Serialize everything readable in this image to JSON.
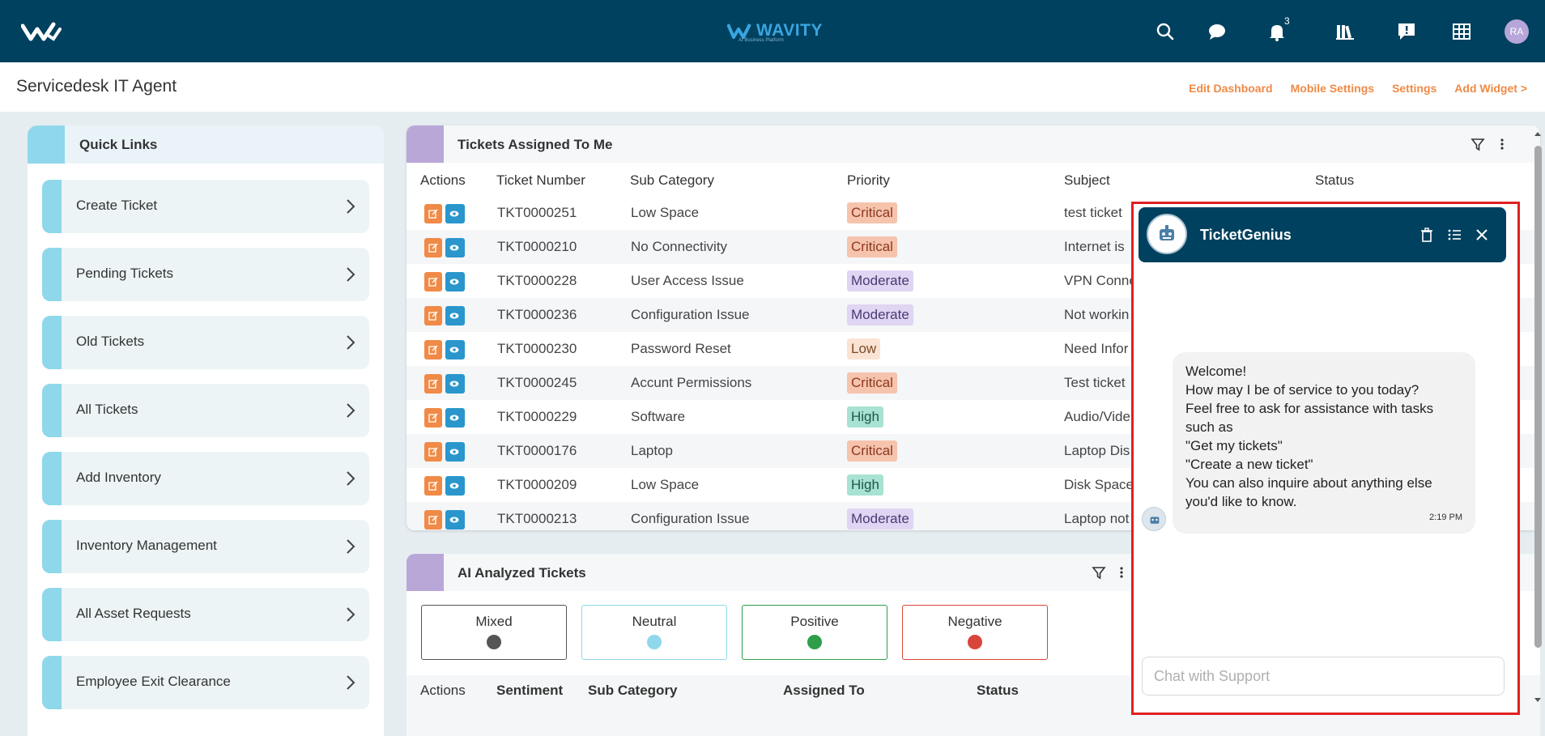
{
  "header": {
    "brand_name": "WAVITY",
    "brand_tagline": "AI Business Platform",
    "notification_count": "3",
    "avatar_initials": "RA",
    "icons": [
      "search-icon",
      "chat-icon",
      "bell-icon",
      "library-icon",
      "feedback-icon",
      "apps-grid-icon"
    ]
  },
  "subheader": {
    "title": "Servicedesk IT Agent",
    "links": [
      "Edit Dashboard",
      "Mobile Settings",
      "Settings",
      "Add Widget >"
    ]
  },
  "quick_links": {
    "title": "Quick Links",
    "items": [
      "Create Ticket",
      "Pending Tickets",
      "Old Tickets",
      "All Tickets",
      "Add Inventory",
      "Inventory Management",
      "All Asset Requests",
      "Employee Exit Clearance"
    ]
  },
  "tickets_panel": {
    "title": "Tickets Assigned To Me",
    "columns": [
      "Actions",
      "Ticket Number",
      "Sub Category",
      "Priority",
      "Subject",
      "Status"
    ],
    "rows": [
      {
        "ticket": "TKT0000251",
        "sub_category": "Low Space",
        "priority": "Critical",
        "subject": "test ticket"
      },
      {
        "ticket": "TKT0000210",
        "sub_category": "No Connectivity",
        "priority": "Critical",
        "subject": "Internet is"
      },
      {
        "ticket": "TKT0000228",
        "sub_category": "User Access Issue",
        "priority": "Moderate",
        "subject": "VPN Conne"
      },
      {
        "ticket": "TKT0000236",
        "sub_category": "Configuration Issue",
        "priority": "Moderate",
        "subject": "Not workin"
      },
      {
        "ticket": "TKT0000230",
        "sub_category": "Password Reset",
        "priority": "Low",
        "subject": "Need Infor"
      },
      {
        "ticket": "TKT0000245",
        "sub_category": "Accunt Permissions",
        "priority": "Critical",
        "subject": "Test ticket"
      },
      {
        "ticket": "TKT0000229",
        "sub_category": "Software",
        "priority": "High",
        "subject": "Audio/Vide"
      },
      {
        "ticket": "TKT0000176",
        "sub_category": "Laptop",
        "priority": "Critical",
        "subject": "Laptop Dis"
      },
      {
        "ticket": "TKT0000209",
        "sub_category": "Low Space",
        "priority": "High",
        "subject": "Disk Space"
      },
      {
        "ticket": "TKT0000213",
        "sub_category": "Configuration Issue",
        "priority": "Moderate",
        "subject": "Laptop not"
      }
    ]
  },
  "ai_panel": {
    "title": "AI Analyzed Tickets",
    "sentiments": [
      {
        "label": "Mixed",
        "color": "#555555"
      },
      {
        "label": "Neutral",
        "color": "#8fd7ea"
      },
      {
        "label": "Positive",
        "color": "#2e9e4a"
      },
      {
        "label": "Negative",
        "color": "#d9453a"
      }
    ],
    "columns": [
      "Actions",
      "Sentiment",
      "Sub Category",
      "Assigned To",
      "Status"
    ]
  },
  "chat": {
    "title": "TicketGenius",
    "message_lines": [
      "Welcome!",
      "How may I be of service to you today?",
      "Feel free to ask for assistance with tasks",
      "such as",
      "\"Get my tickets\"",
      "\"Create a new ticket\"",
      "You can also inquire about anything else",
      "you'd like to know."
    ],
    "message_time": "2:19 PM",
    "input_placeholder": "Chat with Support"
  },
  "colors": {
    "topbar": "#00415f",
    "accent_orange": "#f08a46",
    "accent_blue": "#2a96cc",
    "quick_link_accent": "#8fd7ea",
    "panel_accent": "#b9a8d7",
    "chat_highlight": "#e02020"
  }
}
